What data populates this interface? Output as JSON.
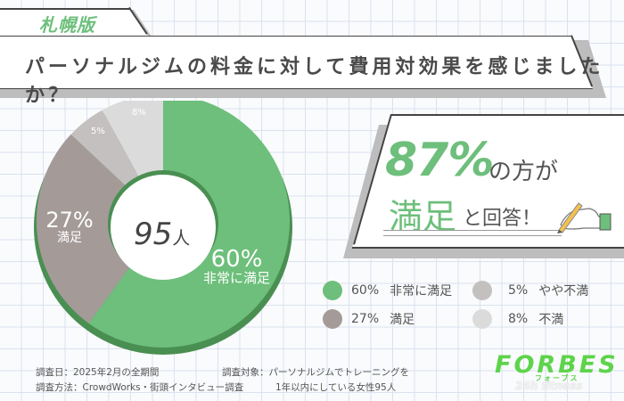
{
  "edition_tab": {
    "label": "札幌版"
  },
  "title": "パーソナルジムの料金に対して費用対効果を感じましたか？",
  "chart_data": {
    "type": "pie",
    "subtype": "donut",
    "title": "パーソナルジムの料金に対して費用対効果を感じましたか？",
    "center_label": "95人",
    "total_respondents": 95,
    "categories": [
      "非常に満足",
      "満足",
      "やや不満",
      "不満"
    ],
    "values": [
      60,
      27,
      5,
      8
    ],
    "unit": "%",
    "colors": [
      "#6dbf7b",
      "#a49b99",
      "#c4c0bf",
      "#dcdbdb"
    ],
    "slice_labels": [
      "60%\n非常に満足",
      "27%\n満足",
      "5%",
      "8%"
    ],
    "legend_position": "right-bottom"
  },
  "donut": {
    "center_number": "95",
    "center_unit": "人",
    "labels": {
      "very_satisfied_pct": "60%",
      "very_satisfied_text": "非常に満足",
      "satisfied_pct": "27%",
      "satisfied_text": "満足",
      "somewhat_dissatisfied_pct": "5%",
      "dissatisfied_pct": "8%"
    }
  },
  "callout": {
    "percent": "87%",
    "percent_suffix": "の方が",
    "highlight": "満足",
    "highlight_suffix": "と回答！"
  },
  "legend": [
    {
      "pct": "60%",
      "label": "非常に満足",
      "color": "#6dbf7b"
    },
    {
      "pct": "27%",
      "label": "満足",
      "color": "#a49b99"
    },
    {
      "pct": "5%",
      "label": "やや不満",
      "color": "#c4c0bf"
    },
    {
      "pct": "8%",
      "label": "不満",
      "color": "#dcdbdb"
    }
  ],
  "footnote": {
    "date": "調査日：2025年2月の全期間",
    "method": "調査方法：CrowdWorks・街頭インタビュー調査",
    "target_line1": "調査対象：パーソナルジムでトレーニングを",
    "target_line2": "1年以内にしている女性95人"
  },
  "logo": {
    "main": "FORBES",
    "kana": "フォーブス",
    "sub": "24h fitness"
  }
}
